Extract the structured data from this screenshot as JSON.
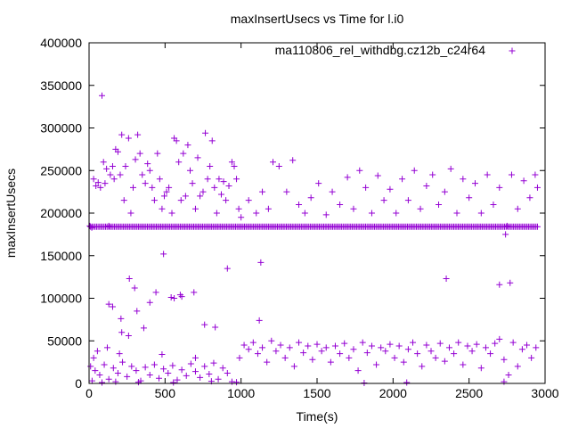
{
  "chart_data": {
    "type": "scatter",
    "title": "maxInsertUsecs vs Time for l.i0",
    "xlabel": "Time(s)",
    "ylabel": "maxInsertUsecs",
    "xlim": [
      0,
      3000
    ],
    "ylim": [
      0,
      400000
    ],
    "x_ticks": [
      0,
      500,
      1000,
      1500,
      2000,
      2500,
      3000
    ],
    "y_ticks": [
      0,
      50000,
      100000,
      150000,
      200000,
      250000,
      300000,
      350000,
      400000
    ],
    "x_tick_labels": [
      "0",
      "500",
      "1000",
      "1500",
      "2000",
      "2500",
      "3000"
    ],
    "y_tick_labels": [
      "0",
      "50000",
      "100000",
      "150000",
      "200000",
      "250000",
      "300000",
      "350000",
      "400000"
    ],
    "grid": false,
    "legend_position": "top-right",
    "marker": "+",
    "color": "#9400d3",
    "series": [
      {
        "name": "ma110806_rel_withdbg.cz12b_c24r64",
        "points": [
          [
            5,
            185000
          ],
          [
            18,
            183000
          ],
          [
            30,
            240000
          ],
          [
            45,
            232000
          ],
          [
            60,
            236000
          ],
          [
            75,
            230000
          ],
          [
            85,
            338000
          ],
          [
            95,
            260000
          ],
          [
            105,
            235000
          ],
          [
            115,
            252000
          ],
          [
            130,
            185000
          ],
          [
            140,
            245000
          ],
          [
            155,
            255000
          ],
          [
            165,
            240000
          ],
          [
            175,
            275000
          ],
          [
            190,
            272000
          ],
          [
            205,
            245000
          ],
          [
            215,
            292000
          ],
          [
            230,
            215000
          ],
          [
            240,
            255000
          ],
          [
            260,
            288000
          ],
          [
            275,
            200000
          ],
          [
            290,
            230000
          ],
          [
            305,
            263000
          ],
          [
            320,
            292000
          ],
          [
            335,
            270000
          ],
          [
            350,
            245000
          ],
          [
            370,
            235000
          ],
          [
            385,
            258000
          ],
          [
            400,
            250000
          ],
          [
            415,
            230000
          ],
          [
            430,
            215000
          ],
          [
            450,
            270000
          ],
          [
            465,
            240000
          ],
          [
            480,
            205000
          ],
          [
            495,
            220000
          ],
          [
            510,
            225000
          ],
          [
            525,
            230000
          ],
          [
            545,
            200000
          ],
          [
            560,
            288000
          ],
          [
            575,
            285000
          ],
          [
            590,
            260000
          ],
          [
            605,
            215000
          ],
          [
            620,
            270000
          ],
          [
            635,
            220000
          ],
          [
            650,
            280000
          ],
          [
            665,
            250000
          ],
          [
            680,
            235000
          ],
          [
            700,
            205000
          ],
          [
            715,
            265000
          ],
          [
            730,
            220000
          ],
          [
            750,
            225000
          ],
          [
            765,
            294000
          ],
          [
            780,
            240000
          ],
          [
            795,
            255000
          ],
          [
            810,
            285000
          ],
          [
            825,
            230000
          ],
          [
            840,
            200000
          ],
          [
            855,
            240000
          ],
          [
            870,
            222000
          ],
          [
            885,
            237000
          ],
          [
            900,
            215000
          ],
          [
            920,
            232000
          ],
          [
            940,
            260000
          ],
          [
            955,
            255000
          ],
          [
            970,
            240000
          ],
          [
            985,
            205000
          ],
          [
            1000,
            195000
          ],
          [
            1050,
            215000
          ],
          [
            1100,
            200000
          ],
          [
            1140,
            225000
          ],
          [
            1180,
            205000
          ],
          [
            1210,
            260000
          ],
          [
            1250,
            255000
          ],
          [
            1300,
            225000
          ],
          [
            1340,
            262000
          ],
          [
            1380,
            210000
          ],
          [
            1420,
            200000
          ],
          [
            1460,
            218000
          ],
          [
            1510,
            235000
          ],
          [
            1560,
            198000
          ],
          [
            1600,
            225000
          ],
          [
            1650,
            210000
          ],
          [
            1700,
            242000
          ],
          [
            1740,
            205000
          ],
          [
            1780,
            250000
          ],
          [
            1820,
            230000
          ],
          [
            1860,
            200000
          ],
          [
            1900,
            244000
          ],
          [
            1940,
            215000
          ],
          [
            1980,
            228000
          ],
          [
            2020,
            200000
          ],
          [
            2060,
            240000
          ],
          [
            2100,
            215000
          ],
          [
            2140,
            250000
          ],
          [
            2180,
            205000
          ],
          [
            2220,
            232000
          ],
          [
            2260,
            245000
          ],
          [
            2300,
            210000
          ],
          [
            2340,
            225000
          ],
          [
            2380,
            252000
          ],
          [
            2420,
            200000
          ],
          [
            2460,
            240000
          ],
          [
            2500,
            218000
          ],
          [
            2540,
            235000
          ],
          [
            2580,
            200000
          ],
          [
            2620,
            245000
          ],
          [
            2660,
            210000
          ],
          [
            2700,
            230000
          ],
          [
            2740,
            175000
          ],
          [
            2780,
            245000
          ],
          [
            2820,
            205000
          ],
          [
            2860,
            238000
          ],
          [
            2900,
            218000
          ],
          [
            2935,
            245000
          ],
          [
            2950,
            230000
          ],
          [
            130,
            93000
          ],
          [
            155,
            90000
          ],
          [
            210,
            76000
          ],
          [
            215,
            60000
          ],
          [
            265,
            123000
          ],
          [
            300,
            112000
          ],
          [
            315,
            85000
          ],
          [
            360,
            65000
          ],
          [
            400,
            95000
          ],
          [
            440,
            107000
          ],
          [
            490,
            152000
          ],
          [
            540,
            101000
          ],
          [
            560,
            100000
          ],
          [
            600,
            104000
          ],
          [
            610,
            102000
          ],
          [
            690,
            107000
          ],
          [
            760,
            69000
          ],
          [
            830,
            66000
          ],
          [
            910,
            135000
          ],
          [
            1130,
            142000
          ],
          [
            1120,
            74000
          ],
          [
            2350,
            123000
          ],
          [
            2700,
            116000
          ],
          [
            2770,
            118000
          ],
          [
            10,
            20000
          ],
          [
            40,
            15000
          ],
          [
            70,
            10000
          ],
          [
            100,
            22000
          ],
          [
            130,
            5000
          ],
          [
            160,
            18000
          ],
          [
            190,
            12000
          ],
          [
            220,
            25000
          ],
          [
            250,
            8000
          ],
          [
            280,
            20000
          ],
          [
            310,
            15000
          ],
          [
            340,
            3000
          ],
          [
            370,
            19000
          ],
          [
            400,
            10000
          ],
          [
            430,
            22000
          ],
          [
            460,
            6000
          ],
          [
            490,
            17000
          ],
          [
            520,
            12000
          ],
          [
            550,
            21000
          ],
          [
            580,
            4000
          ],
          [
            610,
            16000
          ],
          [
            640,
            9000
          ],
          [
            670,
            23000
          ],
          [
            700,
            14000
          ],
          [
            730,
            7000
          ],
          [
            760,
            20000
          ],
          [
            790,
            11000
          ],
          [
            820,
            24000
          ],
          [
            850,
            5000
          ],
          [
            880,
            18000
          ],
          [
            910,
            12000
          ],
          [
            940,
            2000
          ],
          [
            30,
            30000
          ],
          [
            55,
            38000
          ],
          [
            120,
            42000
          ],
          [
            200,
            35000
          ],
          [
            260,
            56000
          ],
          [
            480,
            34000
          ],
          [
            700,
            30000
          ],
          [
            20,
            3000
          ],
          [
            85,
            1000
          ],
          [
            175,
            2000
          ],
          [
            325,
            1500
          ],
          [
            555,
            1000
          ],
          [
            805,
            2500
          ],
          [
            970,
            1500
          ],
          [
            990,
            30000
          ],
          [
            1020,
            45000
          ],
          [
            1050,
            40000
          ],
          [
            1080,
            48000
          ],
          [
            1110,
            35000
          ],
          [
            1140,
            42000
          ],
          [
            1170,
            25000
          ],
          [
            1200,
            50000
          ],
          [
            1230,
            38000
          ],
          [
            1260,
            45000
          ],
          [
            1290,
            30000
          ],
          [
            1320,
            42000
          ],
          [
            1350,
            20000
          ],
          [
            1380,
            48000
          ],
          [
            1410,
            36000
          ],
          [
            1440,
            44000
          ],
          [
            1470,
            28000
          ],
          [
            1500,
            46000
          ],
          [
            1530,
            38000
          ],
          [
            1560,
            42000
          ],
          [
            1590,
            25000
          ],
          [
            1620,
            44000
          ],
          [
            1650,
            35000
          ],
          [
            1680,
            47000
          ],
          [
            1710,
            30000
          ],
          [
            1740,
            40000
          ],
          [
            1770,
            15000
          ],
          [
            1800,
            48000
          ],
          [
            1830,
            36000
          ],
          [
            1860,
            44000
          ],
          [
            1890,
            22000
          ],
          [
            1920,
            42000
          ],
          [
            1950,
            38000
          ],
          [
            1980,
            46000
          ],
          [
            2010,
            30000
          ],
          [
            2040,
            44000
          ],
          [
            2070,
            25000
          ],
          [
            2100,
            40000
          ],
          [
            2130,
            48000
          ],
          [
            2160,
            35000
          ],
          [
            2190,
            20000
          ],
          [
            2220,
            45000
          ],
          [
            2250,
            38000
          ],
          [
            2280,
            30000
          ],
          [
            2310,
            47000
          ],
          [
            2340,
            26000
          ],
          [
            2370,
            42000
          ],
          [
            2400,
            35000
          ],
          [
            2430,
            48000
          ],
          [
            2460,
            22000
          ],
          [
            2490,
            44000
          ],
          [
            2520,
            38000
          ],
          [
            2550,
            46000
          ],
          [
            2580,
            18000
          ],
          [
            2610,
            42000
          ],
          [
            2640,
            35000
          ],
          [
            2670,
            47000
          ],
          [
            2700,
            52000
          ],
          [
            2730,
            28000
          ],
          [
            2760,
            10000
          ],
          [
            2790,
            48000
          ],
          [
            2820,
            20000
          ],
          [
            2850,
            40000
          ],
          [
            2880,
            45000
          ],
          [
            2910,
            30000
          ],
          [
            2940,
            42000
          ],
          [
            1810,
            500
          ],
          [
            2090,
            1000
          ],
          [
            2730,
            2000
          ]
        ]
      },
      {
        "name": "",
        "points": [
          [
            2750,
            185000
          ]
        ]
      }
    ],
    "band": {
      "x_start": 10,
      "x_end": 2950,
      "y_level": 184000,
      "count": 300
    }
  }
}
